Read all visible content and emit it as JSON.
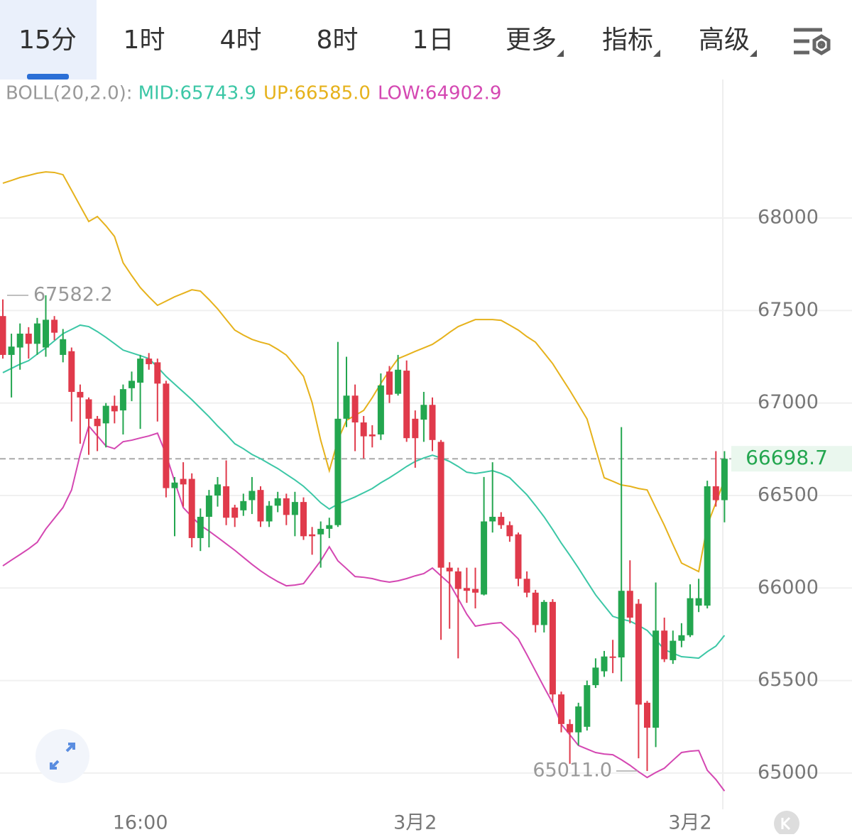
{
  "tabs": [
    "15分",
    "1时",
    "4时",
    "8时",
    "1日",
    "更多",
    "指标",
    "高级"
  ],
  "chart_data": {
    "type": "candlestick",
    "indicator": "BOLL(20,2.0):",
    "categories": [
      null,
      null,
      null,
      null,
      null,
      null,
      null,
      null,
      null,
      null,
      null,
      null,
      null,
      null,
      null,
      null,
      "16:00",
      null,
      null,
      null,
      null,
      null,
      null,
      null,
      null,
      null,
      null,
      null,
      null,
      null,
      null,
      null,
      null,
      null,
      null,
      null,
      null,
      null,
      null,
      null,
      null,
      null,
      null,
      null,
      null,
      null,
      null,
      null,
      "3月2",
      null,
      null,
      null,
      null,
      null,
      null,
      null,
      null,
      null,
      null,
      null,
      null,
      null,
      null,
      null,
      null,
      null,
      null,
      null,
      null,
      null,
      null,
      null,
      null,
      null,
      null,
      null,
      null,
      null,
      null,
      null,
      "3月2",
      null,
      null,
      null,
      null
    ],
    "open": [
      67470,
      67260,
      67300,
      67375,
      67320,
      67300,
      67450,
      67260,
      67280,
      67060,
      67020,
      66915,
      66890,
      66985,
      66960,
      67080,
      67110,
      67240,
      67220,
      67105,
      66540,
      66590,
      66590,
      66270,
      66385,
      66500,
      66550,
      66435,
      66420,
      66475,
      66530,
      66360,
      66445,
      66485,
      66395,
      66465,
      66290,
      66290,
      66320,
      66340,
      66915,
      67040,
      66895,
      66830,
      66830,
      67170,
      67050,
      67175,
      66915,
      66910,
      66990,
      66790,
      66110,
      66090,
      66000,
      65995,
      65965,
      66360,
      66385,
      66340,
      66290,
      66050,
      65975,
      65800,
      65925,
      65425,
      65265,
      65220,
      65250,
      65475,
      65550,
      65630,
      65625,
      65985,
      65915,
      65380,
      65245,
      65770,
      65610,
      65715,
      65745,
      65905,
      65905,
      66550,
      66475
    ],
    "high": [
      67560,
      67375,
      67430,
      67410,
      67460,
      67582.2,
      67470,
      67400,
      67300,
      67100,
      67030,
      66930,
      67000,
      67040,
      67100,
      67170,
      67260,
      67270,
      67240,
      67120,
      66600,
      66680,
      66620,
      66430,
      66530,
      66600,
      66690,
      66450,
      66510,
      66600,
      66550,
      66470,
      66520,
      66510,
      66520,
      66490,
      66330,
      66360,
      66380,
      67330,
      67250,
      67100,
      66930,
      66880,
      67160,
      67200,
      67260,
      67230,
      66960,
      67060,
      67030,
      66800,
      66140,
      66110,
      66110,
      66110,
      66600,
      66680,
      66410,
      66360,
      66300,
      66090,
      65990,
      65935,
      65940,
      65440,
      65290,
      65380,
      65500,
      65620,
      65660,
      65720,
      66870,
      66150,
      65940,
      65390,
      66030,
      65840,
      65770,
      65810,
      66020,
      66050,
      66580,
      66740,
      66740
    ],
    "low": [
      67240,
      67030,
      67180,
      67240,
      67260,
      67250,
      67340,
      67220,
      66900,
      66780,
      66720,
      66740,
      66760,
      66890,
      66830,
      67010,
      66860,
      67180,
      66900,
      66490,
      66280,
      66440,
      66220,
      66200,
      66220,
      66440,
      66340,
      66330,
      66390,
      66400,
      66330,
      66330,
      66410,
      66340,
      66280,
      66260,
      66180,
      66110,
      66270,
      66330,
      66870,
      66740,
      66700,
      66760,
      66800,
      67000,
      67040,
      66790,
      66650,
      66790,
      66740,
      65720,
      65780,
      65620,
      65920,
      65890,
      65960,
      66300,
      66320,
      66250,
      66010,
      65950,
      65760,
      65760,
      65380,
      65220,
      65050,
      65150,
      65230,
      65460,
      65520,
      65540,
      65495,
      65810,
      65080,
      65011,
      65140,
      65600,
      65590,
      65680,
      65735,
      65870,
      65890,
      66440,
      66355
    ],
    "close": [
      67260,
      67305,
      67375,
      67320,
      67430,
      67450,
      67380,
      67345,
      67060,
      67030,
      66915,
      66875,
      66985,
      66955,
      67075,
      67120,
      67240,
      67210,
      67105,
      66540,
      66570,
      66560,
      66270,
      66385,
      66500,
      66560,
      66380,
      66380,
      66470,
      66525,
      66360,
      66445,
      66485,
      66395,
      66465,
      66280,
      66280,
      66320,
      66340,
      66915,
      67040,
      66895,
      66820,
      66820,
      67095,
      67045,
      67180,
      66810,
      66810,
      66990,
      66800,
      66110,
      66090,
      65995,
      65985,
      65975,
      66360,
      66385,
      66340,
      66280,
      66050,
      65975,
      65800,
      65925,
      65425,
      65265,
      65220,
      65360,
      65475,
      65570,
      65630,
      65625,
      65985,
      65840,
      65370,
      65245,
      65770,
      65615,
      65715,
      65745,
      65945,
      65945,
      66550,
      66475,
      66698.7
    ],
    "up_color": "#23a64f",
    "down_color": "#e03a4b",
    "lines": [
      {
        "label": "MID:65743.9",
        "color": "#3cc7a6",
        "values": [
          67164,
          67187,
          67210,
          67229,
          67264,
          67298,
          67336,
          67375,
          67398,
          67421,
          67413,
          67386,
          67355,
          67321,
          67286,
          67271,
          67256,
          67240,
          67194,
          67144,
          67102,
          67060,
          67018,
          66972,
          66926,
          66876,
          66830,
          66780,
          66753,
          66722,
          66699,
          66672,
          66646,
          66615,
          66584,
          66550,
          66507,
          66461,
          66427,
          66454,
          66473,
          66492,
          66515,
          66538,
          66569,
          66596,
          66626,
          66657,
          66684,
          66703,
          66718,
          66703,
          66684,
          66657,
          66626,
          66619,
          66626,
          66634,
          66619,
          66596,
          66550,
          66504,
          66446,
          66385,
          66316,
          66243,
          66177,
          66108,
          66035,
          65963,
          65905,
          65847,
          65832,
          65821,
          65798,
          65771,
          65721,
          65667,
          65648,
          65629,
          65625,
          65621,
          65656,
          65686,
          65743.9
        ]
      },
      {
        "label": "UP:66585.0",
        "color": "#e6b21c",
        "values": [
          68188,
          68203,
          68219,
          68230,
          68242,
          68249,
          68246,
          68234,
          68150,
          68065,
          67981,
          68008,
          67958,
          67900,
          67758,
          67689,
          67624,
          67574,
          67528,
          67551,
          67574,
          67593,
          67612,
          67605,
          67559,
          67509,
          67451,
          67394,
          67367,
          67344,
          67329,
          67317,
          67290,
          67259,
          67202,
          67144,
          67002,
          66799,
          66634,
          66799,
          66906,
          66933,
          66960,
          67029,
          67106,
          67175,
          67240,
          67259,
          67279,
          67298,
          67317,
          67348,
          67382,
          67413,
          67432,
          67451,
          67451,
          67451,
          67447,
          67421,
          67394,
          67359,
          67329,
          67271,
          67213,
          67140,
          67068,
          66991,
          66914,
          66753,
          66596,
          66577,
          66557,
          66550,
          66538,
          66530,
          66434,
          66339,
          66235,
          66135,
          66112,
          66089,
          66339,
          66461,
          66585
        ]
      },
      {
        "label": "LOW:64902.9",
        "color": "#d447b2",
        "values": [
          66120,
          66151,
          66181,
          66212,
          66247,
          66319,
          66377,
          66435,
          66530,
          66722,
          66876,
          66822,
          66768,
          66753,
          66791,
          66799,
          66811,
          66822,
          66837,
          66722,
          66576,
          66435,
          66385,
          66339,
          66308,
          66274,
          66239,
          66204,
          66166,
          66128,
          66093,
          66062,
          66035,
          66012,
          66016,
          66024,
          66085,
          66147,
          66223,
          66147,
          66105,
          66062,
          66058,
          66051,
          66039,
          66032,
          66039,
          66051,
          66066,
          66078,
          66108,
          66066,
          66024,
          65943,
          65859,
          65794,
          65802,
          65809,
          65813,
          65771,
          65725,
          65640,
          65552,
          65464,
          65379,
          65264,
          65207,
          65149,
          65130,
          65111,
          65103,
          65099,
          65072,
          65042,
          65007,
          64976,
          65003,
          65026,
          65069,
          65111,
          65118,
          65122,
          65015,
          64965,
          64902.9
        ]
      }
    ],
    "max_label": 67582.2,
    "min_label": {
      "value": 65011,
      "label": "65011.0"
    },
    "last_price": 66698.7,
    "ylim": [
      64804,
      68737
    ],
    "yticks": [
      65000,
      65500,
      66000,
      66500,
      67000,
      67500,
      68000
    ],
    "grid": true
  }
}
